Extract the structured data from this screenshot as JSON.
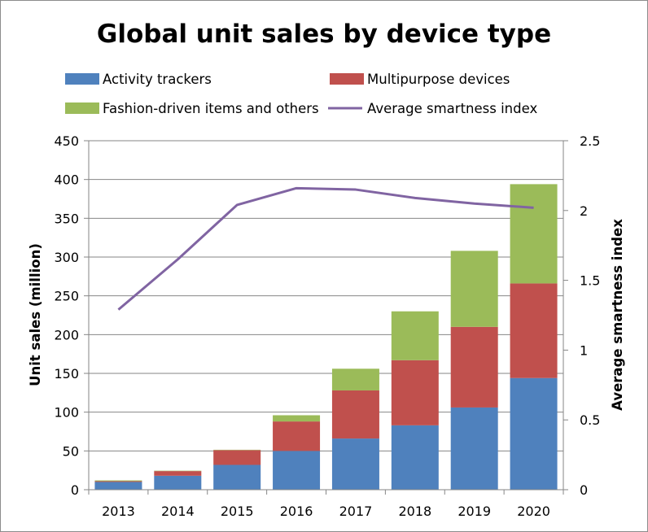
{
  "chart_data": {
    "type": "bar",
    "stacked": true,
    "title": "Global unit sales by device type",
    "categories": [
      "2013",
      "2014",
      "2015",
      "2016",
      "2017",
      "2018",
      "2019",
      "2020"
    ],
    "ylabel": "Unit sales (million)",
    "y2label": "Average smartness index",
    "ylim": [
      0,
      450
    ],
    "y2lim": [
      0,
      2.5
    ],
    "yticks": [
      "0",
      "50",
      "100",
      "150",
      "200",
      "250",
      "300",
      "350",
      "400",
      "450"
    ],
    "y2ticks": [
      "0",
      "0.5",
      "1",
      "1.5",
      "2",
      "2.5"
    ],
    "legend_position": "top",
    "series": [
      {
        "name": "Activity trackers",
        "type": "bar",
        "color": "#4f81bd",
        "values": [
          10,
          18,
          32,
          50,
          66,
          83,
          106,
          144
        ]
      },
      {
        "name": "Multipurpose devices",
        "type": "bar",
        "color": "#c0504d",
        "values": [
          1,
          6,
          19,
          38,
          62,
          84,
          104,
          122
        ]
      },
      {
        "name": "Fashion-driven items and others",
        "type": "bar",
        "color": "#9bbb59",
        "values": [
          1,
          0.5,
          0.5,
          8,
          28,
          63,
          98,
          128
        ]
      },
      {
        "name": "Average smartness index",
        "type": "line",
        "axis": "right",
        "color": "#8064a2",
        "values": [
          1.29,
          1.65,
          2.04,
          2.16,
          2.15,
          2.09,
          2.05,
          2.02
        ]
      }
    ]
  }
}
